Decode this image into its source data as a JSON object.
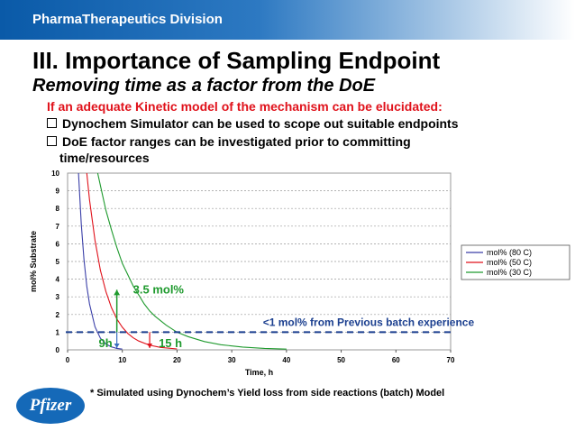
{
  "banner": {
    "text": "PharmaTherapeutics Division"
  },
  "slide": {
    "title": "III. Importance of Sampling Endpoint",
    "subtitle": "Removing time as a factor from the DoE",
    "intro": "If an adequate Kinetic model of the mechanism can be elucidated:",
    "bullets": [
      "Dynochem Simulator can be used to scope out suitable endpoints",
      "DoE factor ranges can be investigated prior to committing",
      "time/resources"
    ],
    "footnote": "* Simulated using Dynochem’s Yield loss from side reactions (batch) Model",
    "logo_text": "Pfizer"
  },
  "colors": {
    "banner": "#0a5aa8",
    "intro_text": "#e0121b",
    "series_80C": "#3a3fa8",
    "series_50C": "#e0121b",
    "series_30C": "#1f9a2e",
    "threshold": "#1b3f8f",
    "annotation_green": "#1f9a2e"
  },
  "chart_data": {
    "type": "line",
    "xlabel": "Time, h",
    "ylabel": "mol% Substrate",
    "xlim": [
      0,
      70
    ],
    "ylim": [
      0,
      10
    ],
    "x_ticks": [
      0,
      10,
      20,
      30,
      40,
      50,
      60,
      70
    ],
    "y_ticks": [
      0,
      1,
      2,
      3,
      4,
      5,
      6,
      7,
      8,
      9,
      10
    ],
    "grid": "horizontal dashed",
    "legend_position": "right",
    "series": [
      {
        "name": "mol% (80 C)",
        "x": [
          2,
          2.5,
          3,
          3.5,
          4,
          5,
          6,
          7,
          8,
          9,
          10
        ],
        "y": [
          10,
          7.1,
          5.1,
          3.6,
          2.6,
          1.3,
          0.66,
          0.33,
          0.17,
          0.08,
          0.04
        ]
      },
      {
        "name": "mol% (50 C)",
        "x": [
          3.5,
          4,
          5,
          6,
          7,
          8,
          9,
          10,
          11,
          12,
          13,
          15,
          17,
          20
        ],
        "y": [
          10,
          8.5,
          6.2,
          4.5,
          3.3,
          2.4,
          1.75,
          1.28,
          0.93,
          0.68,
          0.5,
          0.26,
          0.14,
          0.05
        ]
      },
      {
        "name": "mol% (30 C)",
        "x": [
          5.5,
          6,
          7,
          8,
          9,
          10,
          12,
          14,
          15,
          16,
          18,
          20,
          22,
          25,
          28,
          32,
          36,
          40
        ],
        "y": [
          10,
          9.3,
          7.9,
          6.8,
          5.8,
          4.9,
          3.6,
          2.6,
          2.2,
          1.9,
          1.4,
          1.0,
          0.75,
          0.47,
          0.29,
          0.16,
          0.08,
          0.04
        ]
      }
    ],
    "threshold": {
      "y": 1,
      "label": "<1 mol% from Previous batch experience"
    },
    "annotations": {
      "amount_label": "3.5 mol%",
      "amount_at_x": 9,
      "marker_9h": {
        "x": 9,
        "label": "9h"
      },
      "marker_15h": {
        "x": 15,
        "label": "15 h"
      }
    }
  }
}
